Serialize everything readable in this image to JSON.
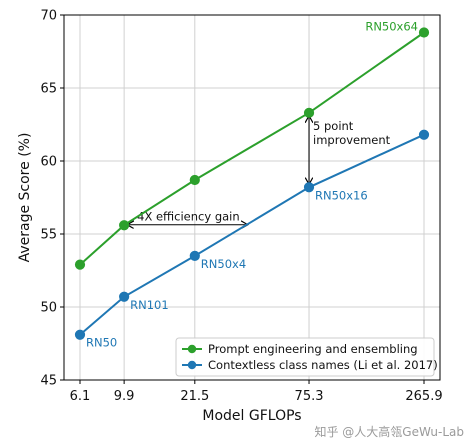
{
  "chart_data": {
    "type": "line",
    "xlabel": "Model GFLOPs",
    "ylabel": "Average Score (%)",
    "x_ticks": [
      "6.1",
      "9.9",
      "21.5",
      "75.3",
      "265.9"
    ],
    "y_ticks": [
      "45",
      "50",
      "55",
      "60",
      "65",
      "70"
    ],
    "ylim": [
      45,
      70
    ],
    "x_scale": "log",
    "grid": true,
    "legend_position": "bottom-right",
    "categories": [
      "6.1",
      "9.9",
      "21.5",
      "75.3",
      "265.9"
    ],
    "series": [
      {
        "name": "Prompt engineering and ensembling",
        "color": "#2ca02c",
        "x": [
          6.1,
          9.9,
          21.5,
          75.3,
          265.9
        ],
        "values": [
          52.9,
          55.6,
          58.7,
          63.3,
          68.8
        ]
      },
      {
        "name": "Contextless class names (Li et al. 2017)",
        "color": "#1f77b4",
        "x": [
          6.1,
          9.9,
          21.5,
          75.3,
          265.9
        ],
        "values": [
          48.1,
          50.7,
          53.5,
          58.2,
          61.8
        ]
      }
    ],
    "point_labels": {
      "top": [
        {
          "i": 4,
          "text": "RN50x64"
        }
      ],
      "bottom": [
        {
          "i": 0,
          "text": "RN50"
        },
        {
          "i": 1,
          "text": "RN101"
        },
        {
          "i": 2,
          "text": "RN50x4"
        },
        {
          "i": 3,
          "text": "RN50x16"
        }
      ]
    },
    "annotations": {
      "efficiency": "4X efficiency gain",
      "improvement_line1": "5 point",
      "improvement_line2": "improvement"
    }
  },
  "watermark": "知乎 @人大高瓴GeWu-Lab"
}
